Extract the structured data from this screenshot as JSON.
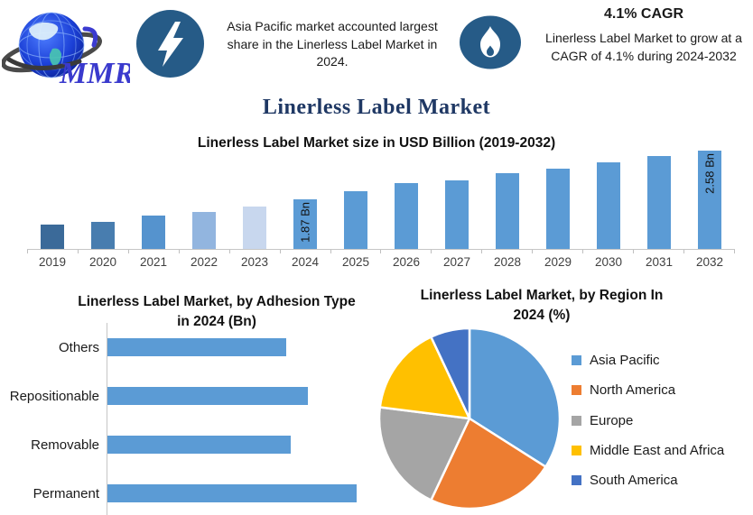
{
  "header": {
    "logo_text": "MMR",
    "highlight1": {
      "icon": "lightning-icon",
      "text": "Asia Pacific market accounted largest share in the Linerless Label Market in 2024."
    },
    "highlight2": {
      "icon": "flame-icon",
      "title": "4.1% CAGR",
      "text": "Linerless Label Market to grow at a CAGR of 4.1% during 2024-2032"
    }
  },
  "page_title": "Linerless Label Market",
  "colors": {
    "badge_blue": "#265B87",
    "title_navy": "#1F3864",
    "bar_blue": "#5B9BD5",
    "axis_gray": "#C6C6C6"
  },
  "chart_data": [
    {
      "type": "bar",
      "title": "Linerless Label Market size in USD Billion (2019-2032)",
      "categories": [
        "2019",
        "2020",
        "2021",
        "2022",
        "2023",
        "2024",
        "2025",
        "2026",
        "2027",
        "2028",
        "2029",
        "2030",
        "2031",
        "2032"
      ],
      "values": [
        1.51,
        1.55,
        1.63,
        1.69,
        1.77,
        1.87,
        1.99,
        2.11,
        2.15,
        2.25,
        2.32,
        2.41,
        2.5,
        2.58
      ],
      "unit": "Bn",
      "ylim": [
        1.15,
        2.62
      ],
      "grid": false,
      "bar_colors": [
        "#3B6A99",
        "#487DAF",
        "#5593CE",
        "#92B5DF",
        "#C8D7EE",
        "#5B9BD5",
        "#5B9BD5",
        "#5B9BD5",
        "#5B9BD5",
        "#5B9BD5",
        "#5B9BD5",
        "#5B9BD5",
        "#5B9BD5",
        "#5B9BD5"
      ],
      "data_labels": {
        "2024": "1.87 Bn",
        "2032": "2.58 Bn"
      }
    },
    {
      "type": "bar",
      "orientation": "horizontal",
      "title": "Linerless Label Market, by Adhesion Type in 2024 (Bn)",
      "title_lines": [
        "Linerless Label Market, by Adhesion Type",
        "in 2024 (Bn)"
      ],
      "categories": [
        "Others",
        "Repositionable",
        "Removable",
        "Permanent"
      ],
      "values": [
        0.41,
        0.46,
        0.42,
        0.57
      ],
      "unit": "Bn",
      "xlim": [
        0,
        0.6
      ],
      "grid": false,
      "color": "#5B9BD5"
    },
    {
      "type": "pie",
      "title": "Linerless Label Market, by Region In 2024 (%)",
      "title_lines": [
        "Linerless Label Market, by Region In",
        "2024 (%)"
      ],
      "labels": [
        "Asia Pacific",
        "North America",
        "Europe",
        "Middle East and Africa",
        "South America"
      ],
      "values": [
        34,
        23,
        20,
        16,
        7
      ],
      "unit": "%",
      "colors": [
        "#5B9BD5",
        "#ED7D31",
        "#A5A5A5",
        "#FFC000",
        "#4472C4"
      ],
      "legend_position": "right"
    }
  ]
}
